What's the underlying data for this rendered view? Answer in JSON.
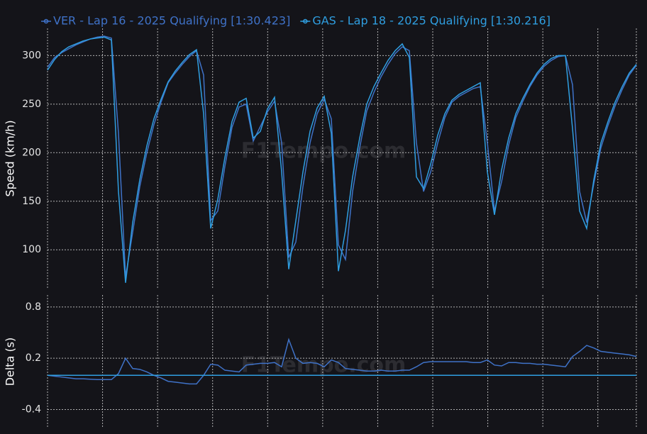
{
  "chart_data": [
    {
      "type": "line",
      "ylabel": "Speed (km/h)",
      "watermark": "F1Tempo.com",
      "ylim": [
        60,
        328
      ],
      "yticks": [
        100,
        150,
        200,
        250,
        300
      ],
      "grid": true,
      "series": [
        {
          "name": "VER - Lap 16 - 2025 Qualifying [1:30.423]",
          "color": "#3f72c8",
          "values": [
            288,
            298,
            303,
            307,
            311,
            314,
            317,
            319,
            320,
            318,
            220,
            72,
            118,
            165,
            200,
            229,
            252,
            272,
            282,
            291,
            299,
            305,
            280,
            130,
            140,
            186,
            226,
            247,
            250,
            212,
            227,
            242,
            253,
            210,
            92,
            108,
            165,
            210,
            240,
            255,
            235,
            105,
            90,
            160,
            205,
            243,
            262,
            278,
            291,
            302,
            309,
            305,
            210,
            160,
            180,
            210,
            236,
            252,
            258,
            262,
            266,
            268,
            210,
            140,
            170,
            208,
            236,
            253,
            268,
            280,
            289,
            295,
            299,
            300,
            270,
            160,
            128,
            168,
            205,
            228,
            248,
            265,
            280,
            290
          ]
        },
        {
          "name": "GAS - Lap 18 - 2025 Qualifying [1:30.216]",
          "color": "#2f9ee0",
          "values": [
            285,
            296,
            304,
            309,
            312,
            315,
            317,
            318,
            319,
            316,
            160,
            66,
            128,
            172,
            207,
            235,
            255,
            273,
            284,
            293,
            301,
            306,
            240,
            122,
            152,
            195,
            232,
            252,
            256,
            215,
            222,
            245,
            257,
            180,
            80,
            130,
            180,
            222,
            246,
            258,
            220,
            78,
            120,
            175,
            215,
            250,
            268,
            282,
            295,
            305,
            312,
            298,
            175,
            163,
            188,
            218,
            240,
            254,
            260,
            264,
            268,
            272,
            180,
            136,
            182,
            215,
            240,
            256,
            270,
            282,
            291,
            297,
            300,
            300,
            225,
            140,
            122,
            172,
            210,
            232,
            252,
            268,
            282,
            291
          ]
        }
      ]
    },
    {
      "type": "line",
      "ylabel": "Delta (s)",
      "watermark": "F1Tempo.com",
      "ylim": [
        -0.62,
        0.94
      ],
      "yticks": [
        0.8,
        0.2,
        -0.4
      ],
      "grid": true,
      "series": [
        {
          "color": "#3f72c8",
          "values": [
            0,
            -0.01,
            -0.02,
            -0.03,
            -0.04,
            -0.04,
            -0.045,
            -0.05,
            -0.05,
            -0.05,
            0.02,
            0.2,
            0.08,
            0.07,
            0.04,
            0,
            -0.03,
            -0.07,
            -0.08,
            -0.09,
            -0.1,
            -0.1,
            0,
            0.13,
            0.12,
            0.06,
            0.05,
            0.04,
            0.12,
            0.13,
            0.14,
            0.14,
            0.15,
            0.1,
            0.42,
            0.2,
            0.14,
            0.15,
            0.14,
            0.1,
            0.18,
            0.15,
            0.08,
            0.07,
            0.06,
            0.05,
            0.05,
            0.06,
            0.05,
            0.05,
            0.06,
            0.06,
            0.1,
            0.15,
            0.16,
            0.16,
            0.16,
            0.16,
            0.16,
            0.16,
            0.15,
            0.15,
            0.18,
            0.12,
            0.11,
            0.15,
            0.15,
            0.14,
            0.14,
            0.13,
            0.13,
            0.12,
            0.11,
            0.1,
            0.22,
            0.28,
            0.35,
            0.32,
            0.28,
            0.27,
            0.26,
            0.25,
            0.24,
            0.22
          ]
        },
        {
          "color": "#2f9ee0",
          "values": [
            0,
            0,
            0,
            0,
            0,
            0,
            0,
            0,
            0,
            0,
            0,
            0,
            0,
            0,
            0,
            0,
            0,
            0,
            0,
            0,
            0,
            0,
            0,
            0,
            0,
            0,
            0,
            0,
            0,
            0,
            0,
            0,
            0,
            0,
            0,
            0,
            0,
            0,
            0,
            0,
            0,
            0,
            0,
            0,
            0,
            0,
            0,
            0,
            0,
            0,
            0,
            0,
            0,
            0,
            0,
            0,
            0,
            0,
            0,
            0,
            0,
            0,
            0,
            0,
            0,
            0,
            0,
            0,
            0,
            0,
            0,
            0,
            0,
            0,
            0,
            0,
            0,
            0,
            0,
            0,
            0,
            0,
            0,
            0
          ]
        }
      ]
    }
  ]
}
